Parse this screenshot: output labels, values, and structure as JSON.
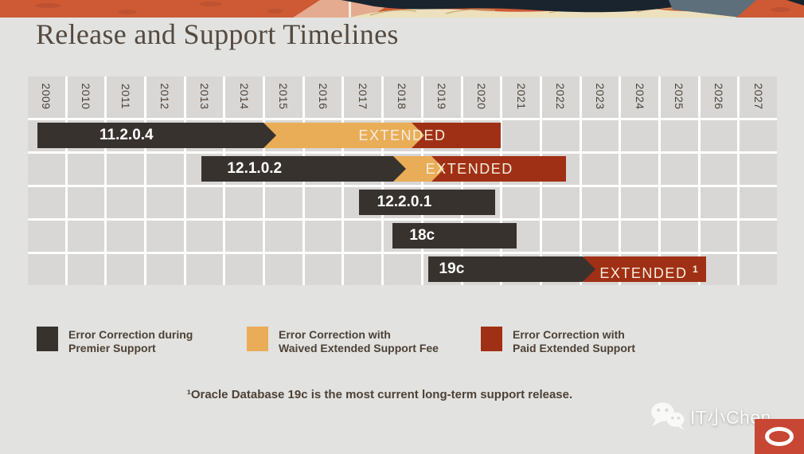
{
  "title": "Release and Support Timelines",
  "chart_data": {
    "type": "timeline-gantt",
    "title": "Release and Support Timelines",
    "years": [
      2009,
      2010,
      2011,
      2012,
      2013,
      2014,
      2015,
      2016,
      2017,
      2018,
      2019,
      2020,
      2021,
      2022,
      2023,
      2024,
      2025,
      2026,
      2027
    ],
    "axis_range": [
      2009,
      2028
    ],
    "colors": {
      "premier": "#38322f",
      "waived_extended": "#e9ad58",
      "paid_extended": "#a03015"
    },
    "rows": [
      {
        "label": "11.2.0.4",
        "label_center_year": 2011.5,
        "segments": [
          {
            "kind": "paid_extended",
            "start": 2018.6,
            "end": 2021.0,
            "arrow": false
          },
          {
            "kind": "waived_extended",
            "start": 2014.9,
            "end": 2019.05,
            "arrow": true
          },
          {
            "kind": "premier",
            "start": 2009.25,
            "end": 2015.3,
            "arrow": true
          }
        ],
        "extended_label": {
          "text": "EXTENDED",
          "center_year": 2018.5
        }
      },
      {
        "label": "12.1.0.2",
        "label_center_year": 2014.75,
        "segments": [
          {
            "kind": "paid_extended",
            "start": 2019.05,
            "end": 2022.65,
            "arrow": false
          },
          {
            "kind": "waived_extended",
            "start": 2018.2,
            "end": 2019.55,
            "arrow": true
          },
          {
            "kind": "premier",
            "start": 2013.4,
            "end": 2018.6,
            "arrow": true
          }
        ],
        "extended_label": {
          "text": "EXTENDED",
          "center_year": 2020.2
        }
      },
      {
        "label": "12.2.0.1",
        "label_center_year": 2018.55,
        "segments": [
          {
            "kind": "premier",
            "start": 2017.4,
            "end": 2020.85,
            "arrow": false
          }
        ]
      },
      {
        "label": "18c",
        "label_center_year": 2019.0,
        "segments": [
          {
            "kind": "premier",
            "start": 2018.25,
            "end": 2021.4,
            "arrow": false
          }
        ]
      },
      {
        "label": "19c",
        "label_center_year": 2019.75,
        "segments": [
          {
            "kind": "paid_extended",
            "start": 2023.1,
            "end": 2026.2,
            "arrow": false
          },
          {
            "kind": "premier",
            "start": 2019.15,
            "end": 2023.4,
            "arrow": true
          }
        ],
        "extended_label": {
          "text": "EXTENDED",
          "sup": "1",
          "center_year": 2024.75
        }
      }
    ],
    "legend": [
      {
        "kind": "premier",
        "lines": [
          "Error Correction during",
          "Premier Support"
        ]
      },
      {
        "kind": "waived_extended",
        "lines": [
          "Error Correction with",
          "Waived Extended Support Fee"
        ]
      },
      {
        "kind": "paid_extended",
        "lines": [
          "Error Correction with",
          "Paid Extended Support"
        ]
      }
    ]
  },
  "footnote": "¹Oracle Database 19c is the most current long-term support release.",
  "watermark": {
    "name": "IT小Chen"
  },
  "logo": {
    "brand_color": "#c74634"
  }
}
